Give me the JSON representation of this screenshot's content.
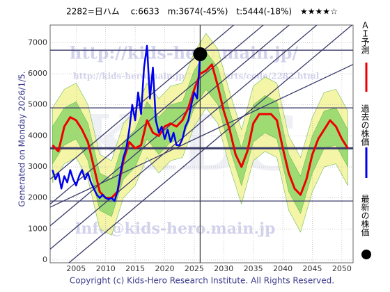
{
  "chart_data": {
    "type": "line",
    "title": "2282=日ハム　 c:6633　m:3674(-45%)　t:5444(-18%)　★★★★☆",
    "left_note": "Generated on Monday 2026/1/5.",
    "footer": "Copyright (c) Kids-Hero Research Institute. All Rights Reserved.",
    "watermarks": [
      "http://kids-hero.main.jp/",
      "http://kids-hero.main.jp/kabu/charts/code/2282.html",
      "info@kids-hero.main.jp",
      "KIDS"
    ],
    "xlim": [
      2000.6,
      2051.9
    ],
    "ylim": [
      -90,
      7570
    ],
    "xticks": [
      2005,
      2010,
      2015,
      2020,
      2025,
      2030,
      2035,
      2040,
      2045,
      2050
    ],
    "yticks": [
      0,
      1000,
      2000,
      3000,
      4000,
      5000,
      6000,
      7000
    ],
    "grid": true,
    "hlines": [
      6760,
      4900,
      3600,
      1900
    ],
    "trend_lines": [
      {
        "x": [
          2000.6,
          2051.9
        ],
        "y": [
          350,
          8550
        ]
      },
      {
        "x": [
          2000.6,
          2051.9
        ],
        "y": [
          1100,
          9300
        ]
      },
      {
        "x": [
          2000.6,
          2051.9
        ],
        "y": [
          1800,
          10000
        ]
      },
      {
        "x": [
          2000.6,
          2051.9
        ],
        "y": [
          2600,
          10800
        ]
      },
      {
        "x": [
          2000.6,
          2051.9
        ],
        "y": [
          -600,
          7600
        ]
      },
      {
        "x": [
          2000.6,
          2051.9
        ],
        "y": [
          1700,
          6300
        ]
      }
    ],
    "bands": {
      "x": [
        2001,
        2003,
        2005,
        2007,
        2009,
        2011,
        2013,
        2015,
        2017,
        2019,
        2021,
        2023,
        2025,
        2027,
        2029,
        2031,
        2033,
        2035,
        2037,
        2039,
        2041,
        2043,
        2045,
        2047,
        2049,
        2051
      ],
      "outer_color": "#f4f49a",
      "inner_color": "#8fd86a",
      "outer_low": [
        2500,
        3100,
        3300,
        2600,
        1000,
        800,
        2000,
        2400,
        3300,
        2800,
        3200,
        3300,
        4300,
        4900,
        4400,
        3000,
        1800,
        3200,
        3500,
        3300,
        1600,
        900,
        2200,
        3000,
        3100,
        2400
      ],
      "outer_high": [
        4900,
        5500,
        5700,
        5000,
        3400,
        3200,
        4400,
        4800,
        5700,
        5200,
        5600,
        5700,
        6700,
        7300,
        6800,
        5400,
        4200,
        5600,
        5900,
        5700,
        4000,
        3300,
        4600,
        5400,
        5500,
        4800
      ],
      "inner_low": [
        3100,
        3700,
        3900,
        3200,
        1600,
        1400,
        2600,
        3000,
        3900,
        3400,
        3800,
        3900,
        4900,
        5500,
        5000,
        3600,
        2400,
        3800,
        4100,
        3900,
        2200,
        1500,
        2800,
        3600,
        3700,
        3000
      ],
      "inner_high": [
        4300,
        4900,
        5100,
        4400,
        2800,
        2600,
        3800,
        4200,
        5100,
        4600,
        5000,
        5100,
        6100,
        6700,
        6200,
        4800,
        3600,
        5000,
        5300,
        5100,
        3400,
        2700,
        4000,
        4800,
        4900,
        4200
      ]
    },
    "series": [
      {
        "name": "ＡＩ予測",
        "color": "#ee0000",
        "x": [
          2001,
          2002,
          2003,
          2004,
          2005,
          2006,
          2007,
          2008,
          2009,
          2010,
          2011,
          2012,
          2013,
          2014,
          2015,
          2016,
          2017,
          2018,
          2019,
          2020,
          2021,
          2022,
          2023,
          2024,
          2025,
          2026,
          2027,
          2028,
          2029,
          2030,
          2031,
          2032,
          2033,
          2034,
          2035,
          2036,
          2037,
          2038,
          2039,
          2040,
          2041,
          2042,
          2043,
          2044,
          2045,
          2046,
          2047,
          2048,
          2049,
          2050,
          2051
        ],
        "values": [
          3700,
          3500,
          4300,
          4600,
          4500,
          4200,
          3800,
          3000,
          2200,
          2000,
          2000,
          2200,
          3200,
          3800,
          3600,
          3700,
          4500,
          4100,
          4000,
          4300,
          4400,
          4300,
          4500,
          4900,
          5500,
          6000,
          6100,
          6300,
          5600,
          4800,
          4200,
          3400,
          3000,
          3500,
          4400,
          4700,
          4700,
          4700,
          4500,
          3600,
          2800,
          2300,
          2100,
          2600,
          3400,
          3900,
          4200,
          4500,
          4300,
          3900,
          3600
        ]
      },
      {
        "name": "過去の株価",
        "color": "#0000ee",
        "x": [
          2001,
          2001.5,
          2002,
          2002.5,
          2003,
          2003.5,
          2004,
          2004.5,
          2005,
          2005.5,
          2006,
          2006.5,
          2007,
          2007.5,
          2008,
          2008.5,
          2009,
          2009.5,
          2010,
          2010.5,
          2011,
          2011.5,
          2012,
          2012.5,
          2013,
          2013.5,
          2014,
          2014.5,
          2015,
          2015.5,
          2016,
          2016.5,
          2017,
          2017.5,
          2018,
          2018.5,
          2019,
          2019.5,
          2020,
          2020.5,
          2021,
          2021.5,
          2022,
          2022.5,
          2023,
          2023.5,
          2024,
          2024.5,
          2025,
          2025.5,
          2026
        ],
        "values": [
          2900,
          2600,
          2800,
          2300,
          2700,
          2500,
          2900,
          2600,
          2400,
          2700,
          2900,
          2600,
          2800,
          2500,
          2300,
          2100,
          2000,
          2100,
          2000,
          1950,
          2000,
          1900,
          2200,
          2800,
          3300,
          3600,
          4200,
          5000,
          4500,
          5400,
          4700,
          6200,
          6900,
          5200,
          6200,
          4500,
          4100,
          4300,
          3900,
          4200,
          3800,
          4100,
          3700,
          3700,
          3900,
          4300,
          4500,
          5000,
          5400,
          5200,
          6633
        ]
      }
    ],
    "latest": {
      "name": "最新の株価",
      "x": 2026,
      "value": 6633,
      "color": "#000000"
    }
  }
}
